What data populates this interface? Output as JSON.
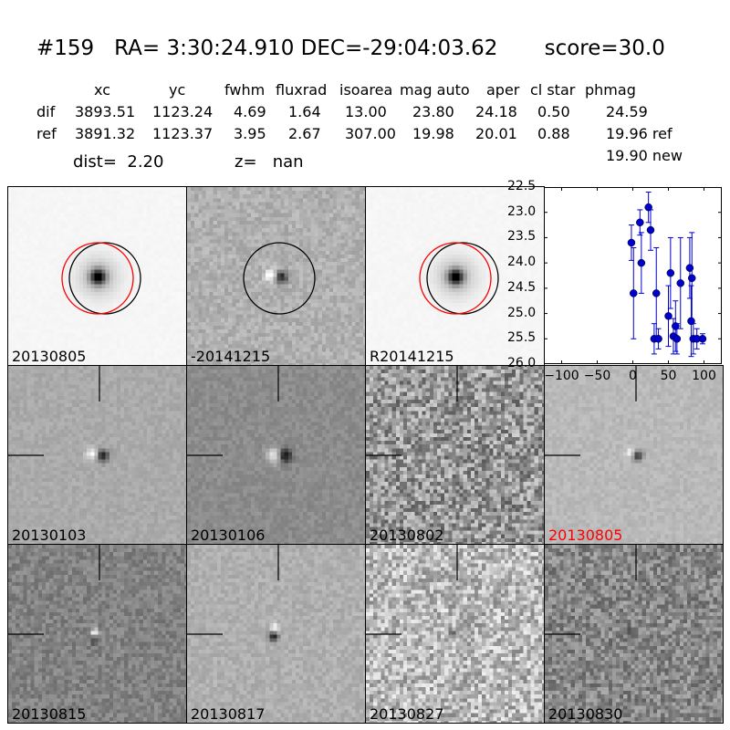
{
  "title": "#159   RA= 3:30:24.910 DEC=-29:04:03.62       score=30.0",
  "table": {
    "headers": [
      "xc",
      "yc",
      "fwhm",
      "fluxrad",
      "isoarea",
      "mag auto",
      "aper",
      "cl star",
      "phmag"
    ],
    "rows": [
      {
        "label": "dif",
        "values": [
          "3893.51",
          "1123.24",
          "4.69",
          "1.64",
          "13.00",
          "23.80",
          "24.18",
          "0.50",
          "24.59"
        ]
      },
      {
        "label": "ref",
        "values": [
          "3891.32",
          "1123.37",
          "3.95",
          "2.67",
          "307.00",
          "19.98",
          "20.01",
          "0.88",
          "19.96 ref"
        ]
      }
    ],
    "extra_phmag": "19.90 new"
  },
  "dist_label": "dist=  2.20",
  "z_label": "z=   nan",
  "panels": [
    {
      "label": "20130805",
      "label_color": "#000000"
    },
    {
      "label": "-20141215",
      "label_color": "#000000"
    },
    {
      "label": "R20141215",
      "label_color": "#000000"
    },
    {
      "label": "20130103",
      "label_color": "#000000"
    },
    {
      "label": "20130106",
      "label_color": "#000000"
    },
    {
      "label": "20130802",
      "label_color": "#000000"
    },
    {
      "label": "20130805",
      "label_color": "#ff0000"
    },
    {
      "label": "20130815",
      "label_color": "#000000"
    },
    {
      "label": "20130817",
      "label_color": "#000000"
    },
    {
      "label": "20130827",
      "label_color": "#000000"
    },
    {
      "label": "20130830",
      "label_color": "#000000"
    }
  ],
  "chart_data": {
    "type": "scatter",
    "title": "",
    "xlabel": "",
    "ylabel": "",
    "xlim": [
      -125,
      125
    ],
    "ylim": [
      26.0,
      22.5
    ],
    "y_inverted": true,
    "xticks": [
      "−100",
      "−50",
      "0",
      "50",
      "100"
    ],
    "xtick_values": [
      -100,
      -50,
      0,
      50,
      100
    ],
    "yticks": [
      "22.5",
      "23.0",
      "23.5",
      "24.0",
      "24.5",
      "25.0",
      "25.5",
      "26.0"
    ],
    "ytick_values": [
      22.5,
      23.0,
      23.5,
      24.0,
      24.5,
      25.0,
      25.5,
      26.0
    ],
    "color": "#0000cc",
    "series": [
      {
        "points": [
          {
            "x": -2,
            "y": 23.6,
            "err": 0.35
          },
          {
            "x": 1,
            "y": 24.6,
            "err": 0.9
          },
          {
            "x": 10,
            "y": 23.2,
            "err": 0.25
          },
          {
            "x": 12,
            "y": 24.0,
            "err": 0.6
          },
          {
            "x": 22,
            "y": 22.9,
            "err": 0.3
          },
          {
            "x": 25,
            "y": 23.35,
            "err": 0.4
          },
          {
            "x": 30,
            "y": 25.5,
            "err": 0.3
          },
          {
            "x": 33,
            "y": 24.6,
            "err": 0.9
          },
          {
            "x": 36,
            "y": 25.5,
            "err": 0.2
          },
          {
            "x": 50,
            "y": 25.05,
            "err": 0.6
          },
          {
            "x": 53,
            "y": 24.2,
            "err": 0.7
          },
          {
            "x": 57,
            "y": 25.45,
            "err": 0.35
          },
          {
            "x": 60,
            "y": 25.25,
            "err": 0.5
          },
          {
            "x": 62,
            "y": 25.5,
            "err": 0.3
          },
          {
            "x": 67,
            "y": 24.4,
            "err": 0.9
          },
          {
            "x": 80,
            "y": 24.1,
            "err": 0.6
          },
          {
            "x": 82,
            "y": 25.15,
            "err": 0.7
          },
          {
            "x": 83,
            "y": 24.3,
            "err": 0.9
          },
          {
            "x": 85,
            "y": 25.5,
            "err": 0.3
          },
          {
            "x": 90,
            "y": 25.5,
            "err": 0.2
          },
          {
            "x": 98,
            "y": 25.5,
            "err": 0.1
          }
        ]
      }
    ]
  }
}
